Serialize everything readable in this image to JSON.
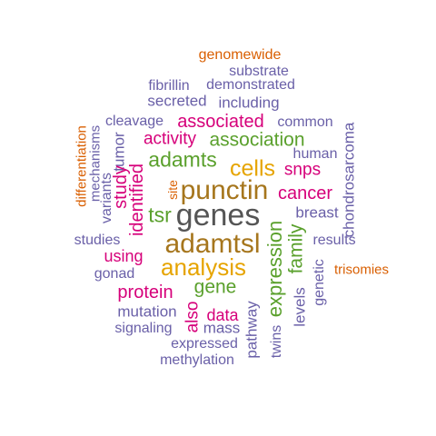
{
  "colors": {
    "purple": "#6a60a8",
    "orange": "#d95f02",
    "magenta": "#d6007a",
    "green": "#5aa02c",
    "gold": "#e6a400",
    "brown": "#a6761d",
    "gray": "#555555"
  },
  "words": [
    {
      "text": "genomewide",
      "color": "orange"
    },
    {
      "text": "substrate",
      "color": "purple"
    },
    {
      "text": "fibrillin",
      "color": "purple"
    },
    {
      "text": "demonstrated",
      "color": "purple"
    },
    {
      "text": "secreted",
      "color": "purple"
    },
    {
      "text": "including",
      "color": "purple"
    },
    {
      "text": "cleavage",
      "color": "purple"
    },
    {
      "text": "associated",
      "color": "magenta"
    },
    {
      "text": "common",
      "color": "purple"
    },
    {
      "text": "activity",
      "color": "magenta"
    },
    {
      "text": "association",
      "color": "green"
    },
    {
      "text": "adamts",
      "color": "green"
    },
    {
      "text": "human",
      "color": "purple"
    },
    {
      "text": "cells",
      "color": "gold"
    },
    {
      "text": "snps",
      "color": "magenta"
    },
    {
      "text": "punctin",
      "color": "brown"
    },
    {
      "text": "cancer",
      "color": "magenta"
    },
    {
      "text": "tsr",
      "color": "green"
    },
    {
      "text": "genes",
      "color": "gray"
    },
    {
      "text": "breast",
      "color": "purple"
    },
    {
      "text": "studies",
      "color": "purple"
    },
    {
      "text": "adamtsl",
      "color": "brown"
    },
    {
      "text": "results",
      "color": "purple"
    },
    {
      "text": "using",
      "color": "magenta"
    },
    {
      "text": "analysis",
      "color": "gold"
    },
    {
      "text": "gonad",
      "color": "purple"
    },
    {
      "text": "trisomies",
      "color": "orange"
    },
    {
      "text": "protein",
      "color": "magenta"
    },
    {
      "text": "gene",
      "color": "green"
    },
    {
      "text": "mutation",
      "color": "purple"
    },
    {
      "text": "data",
      "color": "magenta"
    },
    {
      "text": "signaling",
      "color": "purple"
    },
    {
      "text": "mass",
      "color": "purple"
    },
    {
      "text": "expressed",
      "color": "purple"
    },
    {
      "text": "methylation",
      "color": "purple"
    },
    {
      "text": "differentiation",
      "color": "orange"
    },
    {
      "text": "mechanisms",
      "color": "purple"
    },
    {
      "text": "variants",
      "color": "purple"
    },
    {
      "text": "tumor",
      "color": "purple"
    },
    {
      "text": "study",
      "color": "magenta"
    },
    {
      "text": "identified",
      "color": "magenta"
    },
    {
      "text": "site",
      "color": "orange"
    },
    {
      "text": "expression",
      "color": "green"
    },
    {
      "text": "family",
      "color": "green"
    },
    {
      "text": "levels",
      "color": "purple"
    },
    {
      "text": "genetic",
      "color": "purple"
    },
    {
      "text": "chondrosarcoma",
      "color": "purple"
    },
    {
      "text": "also",
      "color": "magenta"
    },
    {
      "text": "pathway",
      "color": "purple"
    },
    {
      "text": "twins",
      "color": "purple"
    }
  ]
}
